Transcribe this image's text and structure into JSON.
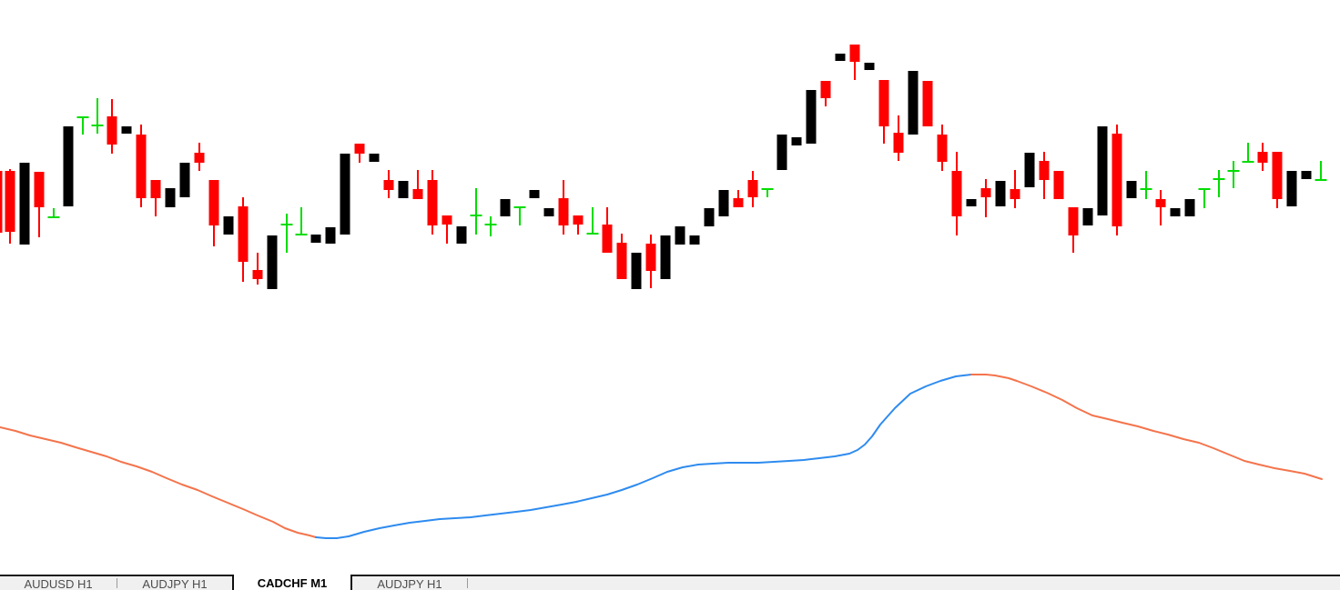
{
  "chart_data": {
    "type": "candlestick",
    "title": "CADCHF M1 candlestick chart with smoothed moving-average ribbon",
    "units": "pixel coordinates of rendered chart, y increases downward",
    "grid": false,
    "axes_visible": false,
    "colors": {
      "background": "#ffffff",
      "bearish": "#ff0000",
      "bullish": "#000000",
      "doji": "#00dc00",
      "ma_down": "#f4744c",
      "ma_up": "#2e8bef"
    },
    "candle_body_width": 11,
    "candles_note": "each candle = [centerX, kind(r=red body,k=black body,g=green doji), bodyTopY, bodyBottomY, highY, lowY]; for g the body value is the open/close tick Y",
    "candles": [
      [
        -3,
        "r",
        188,
        256,
        188,
        263
      ],
      [
        11,
        "r",
        188,
        255,
        186,
        268
      ],
      [
        27,
        "k",
        179,
        269,
        179,
        269
      ],
      [
        43,
        "r",
        189,
        228,
        189,
        261
      ],
      [
        59,
        "g",
        239,
        239,
        229,
        240
      ],
      [
        75,
        "k",
        139,
        227,
        139,
        227
      ],
      [
        91,
        "g",
        129,
        129,
        129,
        148
      ],
      [
        107,
        "g",
        138,
        138,
        108,
        147
      ],
      [
        123,
        "r",
        128,
        159,
        109,
        169
      ],
      [
        139,
        "k",
        139,
        147,
        139,
        147
      ],
      [
        155,
        "r",
        148,
        218,
        137,
        228
      ],
      [
        171,
        "r",
        198,
        218,
        198,
        238
      ],
      [
        187,
        "k",
        207,
        228,
        207,
        228
      ],
      [
        203,
        "k",
        179,
        217,
        179,
        217
      ],
      [
        219,
        "r",
        168,
        179,
        157,
        188
      ],
      [
        235,
        "r",
        198,
        248,
        198,
        271
      ],
      [
        251,
        "k",
        238,
        258,
        238,
        258
      ],
      [
        267,
        "r",
        227,
        288,
        217,
        310
      ],
      [
        283,
        "r",
        297,
        307,
        278,
        313
      ],
      [
        299,
        "k",
        259,
        318,
        259,
        318
      ],
      [
        315,
        "g",
        247,
        247,
        235,
        278
      ],
      [
        331,
        "g",
        258,
        258,
        228,
        259
      ],
      [
        347,
        "k",
        258,
        267,
        258,
        267
      ],
      [
        363,
        "k",
        250,
        268,
        250,
        268
      ],
      [
        379,
        "k",
        169,
        258,
        169,
        258
      ],
      [
        395,
        "r",
        158,
        169,
        158,
        179
      ],
      [
        411,
        "k",
        169,
        178,
        169,
        178
      ],
      [
        427,
        "r",
        198,
        209,
        187,
        218
      ],
      [
        443,
        "k",
        199,
        218,
        199,
        218
      ],
      [
        459,
        "r",
        208,
        219,
        187,
        219
      ],
      [
        475,
        "r",
        198,
        248,
        187,
        258
      ],
      [
        491,
        "r",
        237,
        247,
        237,
        268
      ],
      [
        507,
        "k",
        249,
        268,
        249,
        268
      ],
      [
        523,
        "g",
        237,
        237,
        207,
        258
      ],
      [
        539,
        "g",
        247,
        247,
        238,
        260
      ],
      [
        555,
        "k",
        219,
        238,
        219,
        238
      ],
      [
        571,
        "g",
        228,
        228,
        228,
        248
      ],
      [
        587,
        "k",
        209,
        218,
        209,
        218
      ],
      [
        603,
        "k",
        229,
        238,
        229,
        238
      ],
      [
        619,
        "r",
        218,
        248,
        198,
        258
      ],
      [
        635,
        "r",
        237,
        247,
        237,
        258
      ],
      [
        651,
        "g",
        257,
        257,
        228,
        258
      ],
      [
        667,
        "r",
        247,
        278,
        228,
        278
      ],
      [
        683,
        "r",
        267,
        307,
        257,
        307
      ],
      [
        699,
        "k",
        278,
        318,
        278,
        318
      ],
      [
        715,
        "r",
        268,
        298,
        258,
        317
      ],
      [
        731,
        "k",
        259,
        307,
        259,
        307
      ],
      [
        747,
        "k",
        249,
        269,
        249,
        269
      ],
      [
        763,
        "k",
        259,
        269,
        259,
        269
      ],
      [
        779,
        "k",
        229,
        249,
        229,
        249
      ],
      [
        795,
        "k",
        209,
        238,
        209,
        238
      ],
      [
        811,
        "r",
        218,
        228,
        209,
        228
      ],
      [
        827,
        "r",
        198,
        217,
        188,
        228
      ],
      [
        843,
        "g",
        208,
        208,
        208,
        217
      ],
      [
        859,
        "k",
        148,
        187,
        148,
        187
      ],
      [
        875,
        "k",
        151,
        160,
        151,
        160
      ],
      [
        891,
        "k",
        99,
        158,
        99,
        158
      ],
      [
        907,
        "r",
        89,
        108,
        89,
        117
      ],
      [
        923,
        "k",
        59,
        67,
        59,
        67
      ],
      [
        939,
        "r",
        49,
        68,
        49,
        88
      ],
      [
        955,
        "k",
        69,
        77,
        69,
        77
      ],
      [
        971,
        "r",
        88,
        139,
        88,
        158
      ],
      [
        987,
        "r",
        146,
        168,
        127,
        177
      ],
      [
        1003,
        "k",
        78,
        148,
        78,
        148
      ],
      [
        1019,
        "r",
        89,
        139,
        89,
        139
      ],
      [
        1035,
        "r",
        148,
        178,
        137,
        188
      ],
      [
        1051,
        "r",
        188,
        238,
        167,
        259
      ],
      [
        1067,
        "k",
        219,
        227,
        219,
        227
      ],
      [
        1083,
        "r",
        207,
        217,
        197,
        239
      ],
      [
        1099,
        "k",
        199,
        227,
        199,
        227
      ],
      [
        1115,
        "r",
        208,
        219,
        187,
        229
      ],
      [
        1131,
        "k",
        168,
        206,
        168,
        206
      ],
      [
        1147,
        "r",
        177,
        198,
        167,
        219
      ],
      [
        1163,
        "r",
        188,
        219,
        188,
        219
      ],
      [
        1179,
        "r",
        228,
        259,
        228,
        278
      ],
      [
        1195,
        "k",
        229,
        248,
        229,
        248
      ],
      [
        1211,
        "k",
        139,
        237,
        139,
        237
      ],
      [
        1227,
        "r",
        147,
        249,
        137,
        259
      ],
      [
        1243,
        "k",
        199,
        218,
        199,
        218
      ],
      [
        1259,
        "g",
        208,
        208,
        188,
        219
      ],
      [
        1275,
        "r",
        219,
        228,
        209,
        248
      ],
      [
        1291,
        "k",
        229,
        238,
        229,
        238
      ],
      [
        1307,
        "k",
        219,
        238,
        219,
        238
      ],
      [
        1323,
        "g",
        208,
        208,
        208,
        229
      ],
      [
        1339,
        "g",
        197,
        197,
        187,
        217
      ],
      [
        1355,
        "g",
        188,
        188,
        177,
        207
      ],
      [
        1371,
        "g",
        178,
        178,
        157,
        178
      ],
      [
        1387,
        "r",
        167,
        179,
        157,
        188
      ],
      [
        1403,
        "r",
        167,
        219,
        167,
        229
      ],
      [
        1419,
        "k",
        188,
        227,
        188,
        227
      ],
      [
        1435,
        "k",
        188,
        197,
        188,
        197
      ],
      [
        1451,
        "g",
        198,
        198,
        177,
        198
      ]
    ],
    "indicator": {
      "name": "smoothed-ma-line",
      "stroke_width": 2,
      "segments": [
        {
          "trend": "down",
          "color": "#f4744c",
          "points": [
            [
              0,
              470
            ],
            [
              17,
              474
            ],
            [
              33,
              479
            ],
            [
              50,
              483
            ],
            [
              67,
              487
            ],
            [
              83,
              492
            ],
            [
              100,
              497
            ],
            [
              117,
              502
            ],
            [
              133,
              508
            ],
            [
              150,
              513
            ],
            [
              167,
              519
            ],
            [
              183,
              526
            ],
            [
              200,
              533
            ],
            [
              217,
              539
            ],
            [
              233,
              546
            ],
            [
              250,
              553
            ],
            [
              267,
              560
            ],
            [
              283,
              567
            ],
            [
              300,
              574
            ],
            [
              313,
              581
            ],
            [
              327,
              586
            ],
            [
              340,
              589
            ],
            [
              347,
              591
            ]
          ]
        },
        {
          "trend": "up",
          "color": "#2e8bef",
          "points": [
            [
              347,
              591
            ],
            [
              358,
              592
            ],
            [
              370,
              592
            ],
            [
              383,
              590
            ],
            [
              400,
              585
            ],
            [
              417,
              581
            ],
            [
              433,
              578
            ],
            [
              450,
              575
            ],
            [
              467,
              573
            ],
            [
              483,
              571
            ],
            [
              500,
              570
            ],
            [
              517,
              569
            ],
            [
              533,
              567
            ],
            [
              550,
              565
            ],
            [
              567,
              563
            ],
            [
              583,
              561
            ],
            [
              600,
              558
            ],
            [
              617,
              555
            ],
            [
              633,
              552
            ],
            [
              650,
              548
            ],
            [
              667,
              544
            ],
            [
              683,
              539
            ],
            [
              700,
              533
            ],
            [
              717,
              526
            ],
            [
              733,
              519
            ],
            [
              750,
              514
            ],
            [
              767,
              511
            ],
            [
              783,
              510
            ],
            [
              800,
              509
            ],
            [
              817,
              509
            ],
            [
              833,
              509
            ],
            [
              850,
              508
            ],
            [
              867,
              507
            ],
            [
              883,
              506
            ],
            [
              900,
              504
            ],
            [
              917,
              502
            ],
            [
              933,
              499
            ],
            [
              942,
              495
            ],
            [
              950,
              489
            ],
            [
              958,
              480
            ],
            [
              967,
              467
            ],
            [
              983,
              449
            ],
            [
              1000,
              433
            ],
            [
              1017,
              425
            ],
            [
              1033,
              419
            ],
            [
              1050,
              414
            ],
            [
              1067,
              412
            ]
          ]
        },
        {
          "trend": "down",
          "color": "#f4744c",
          "points": [
            [
              1067,
              412
            ],
            [
              1083,
              412
            ],
            [
              1093,
              413
            ],
            [
              1108,
              416
            ],
            [
              1117,
              419
            ],
            [
              1133,
              425
            ],
            [
              1150,
              432
            ],
            [
              1167,
              440
            ],
            [
              1183,
              449
            ],
            [
              1200,
              457
            ],
            [
              1217,
              461
            ],
            [
              1233,
              465
            ],
            [
              1250,
              469
            ],
            [
              1267,
              474
            ],
            [
              1283,
              478
            ],
            [
              1300,
              483
            ],
            [
              1317,
              487
            ],
            [
              1333,
              493
            ],
            [
              1350,
              500
            ],
            [
              1367,
              507
            ],
            [
              1383,
              511
            ],
            [
              1400,
              515
            ],
            [
              1417,
              518
            ],
            [
              1433,
              521
            ],
            [
              1452,
              527
            ]
          ]
        }
      ]
    }
  },
  "tabs": {
    "separators_after": [
      0,
      3
    ],
    "items": [
      {
        "label": "AUDUSD H1",
        "active": false
      },
      {
        "label": "AUDJPY H1",
        "active": false
      },
      {
        "label": "CADCHF M1",
        "active": true
      },
      {
        "label": "AUDJPY H1",
        "active": false
      }
    ]
  }
}
